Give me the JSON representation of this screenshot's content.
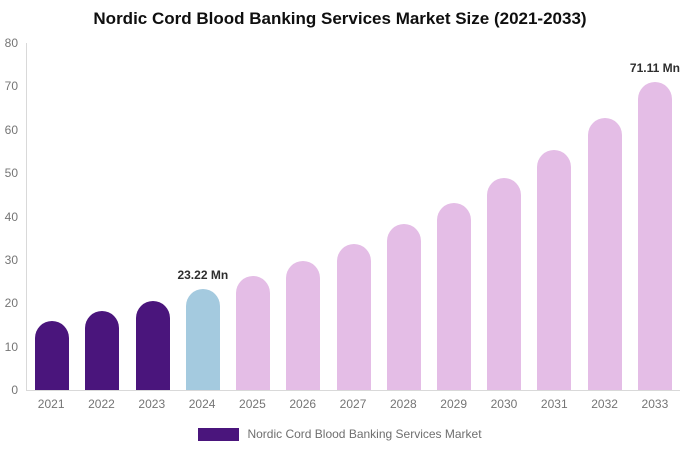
{
  "title": "Nordic Cord Blood Banking Services Market Size (2021-2033)",
  "chart_data": {
    "type": "bar",
    "title": "Nordic Cord Blood Banking Services Market Size (2021-2033)",
    "unit": "Mn",
    "categories": [
      "2021",
      "2022",
      "2023",
      "2024",
      "2025",
      "2026",
      "2027",
      "2028",
      "2029",
      "2030",
      "2031",
      "2032",
      "2033"
    ],
    "values": [
      16.0,
      18.11,
      20.51,
      23.22,
      26.29,
      29.77,
      33.71,
      38.17,
      43.23,
      48.95,
      55.43,
      62.77,
      71.11
    ],
    "point_groups": [
      "historical",
      "historical",
      "historical",
      "base",
      "forecast",
      "forecast",
      "forecast",
      "forecast",
      "forecast",
      "forecast",
      "forecast",
      "forecast",
      "forecast"
    ],
    "data_labels": [
      null,
      null,
      null,
      "23.22 Mn",
      null,
      null,
      null,
      null,
      null,
      null,
      null,
      null,
      "71.11 Mn"
    ],
    "ylim": [
      0,
      80
    ],
    "y_ticks": [
      0,
      10,
      20,
      30,
      40,
      50,
      60,
      70,
      80
    ],
    "grid": false,
    "legend_position": "bottom",
    "series_name": "Nordic Cord Blood Banking Services Market"
  },
  "colors": {
    "historical": "#4a157c",
    "base": "#a4cadf",
    "forecast": "#e4bde6",
    "axis_line": "#d9d9d9",
    "tick_text": "#757575",
    "value_label_text": "#2e2e2e",
    "title_text": "#0f0f0f"
  },
  "legend": {
    "label": "Nordic Cord Blood Banking Services Market",
    "swatch_color": "#4a157c"
  }
}
